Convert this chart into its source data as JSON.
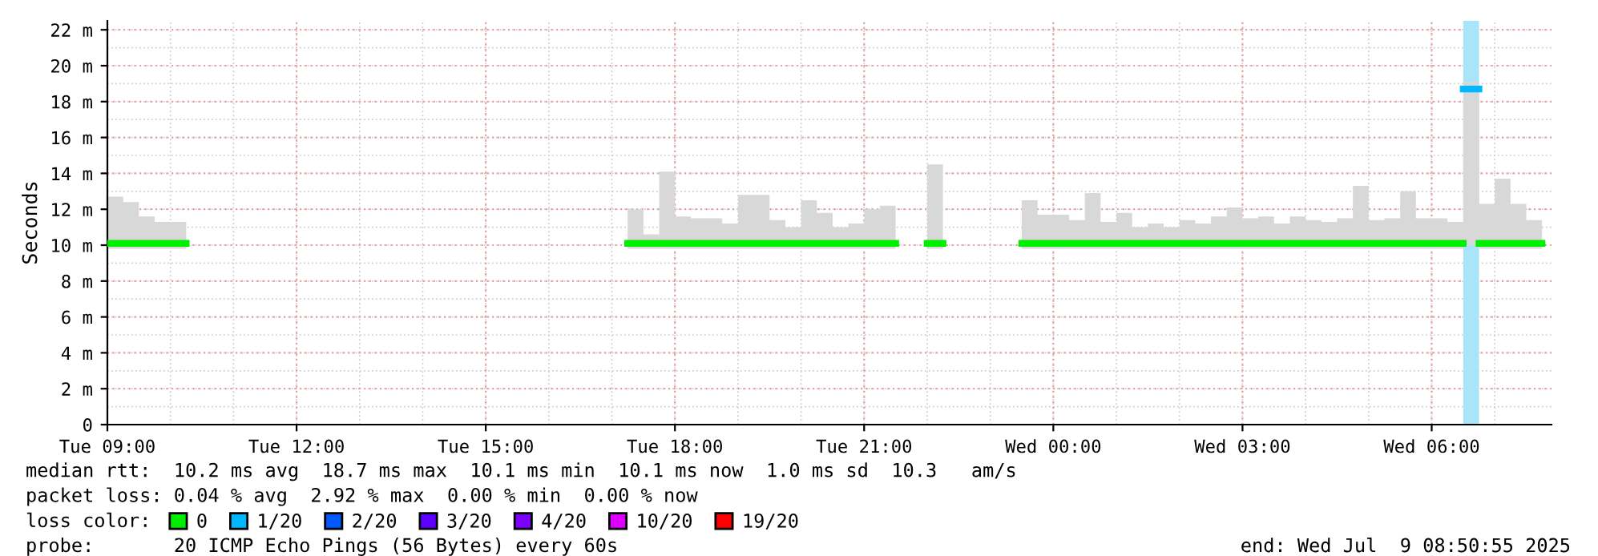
{
  "chart_data": {
    "type": "step",
    "ylabel": "Seconds",
    "x": [
      "2025-07-08T09:00",
      "2025-07-08T09:15",
      "2025-07-08T09:30",
      "2025-07-08T09:45",
      "2025-07-08T10:00",
      "2025-07-08T10:15",
      "2025-07-08T10:30",
      "2025-07-08T10:45",
      "2025-07-08T11:00",
      "2025-07-08T11:15",
      "2025-07-08T11:30",
      "2025-07-08T11:45",
      "2025-07-08T12:00",
      "2025-07-08T12:15",
      "2025-07-08T12:30",
      "2025-07-08T12:45",
      "2025-07-08T13:00",
      "2025-07-08T13:15",
      "2025-07-08T13:30",
      "2025-07-08T13:45",
      "2025-07-08T14:00",
      "2025-07-08T14:15",
      "2025-07-08T14:30",
      "2025-07-08T14:45",
      "2025-07-08T15:00",
      "2025-07-08T15:15",
      "2025-07-08T15:30",
      "2025-07-08T15:45",
      "2025-07-08T16:00",
      "2025-07-08T16:15",
      "2025-07-08T16:30",
      "2025-07-08T16:45",
      "2025-07-08T17:00",
      "2025-07-08T17:15",
      "2025-07-08T17:30",
      "2025-07-08T17:45",
      "2025-07-08T18:00",
      "2025-07-08T18:15",
      "2025-07-08T18:30",
      "2025-07-08T18:45",
      "2025-07-08T19:00",
      "2025-07-08T19:15",
      "2025-07-08T19:30",
      "2025-07-08T19:45",
      "2025-07-08T20:00",
      "2025-07-08T20:15",
      "2025-07-08T20:30",
      "2025-07-08T20:45",
      "2025-07-08T21:00",
      "2025-07-08T21:15",
      "2025-07-08T21:30",
      "2025-07-08T21:45",
      "2025-07-08T22:00",
      "2025-07-08T22:15",
      "2025-07-08T22:30",
      "2025-07-08T22:45",
      "2025-07-08T23:00",
      "2025-07-08T23:15",
      "2025-07-08T23:30",
      "2025-07-08T23:45",
      "2025-07-09T00:00",
      "2025-07-09T00:15",
      "2025-07-09T00:30",
      "2025-07-09T00:45",
      "2025-07-09T01:00",
      "2025-07-09T01:15",
      "2025-07-09T01:30",
      "2025-07-09T01:45",
      "2025-07-09T02:00",
      "2025-07-09T02:15",
      "2025-07-09T02:30",
      "2025-07-09T02:45",
      "2025-07-09T03:00",
      "2025-07-09T03:15",
      "2025-07-09T03:30",
      "2025-07-09T03:45",
      "2025-07-09T04:00",
      "2025-07-09T04:15",
      "2025-07-09T04:30",
      "2025-07-09T04:45",
      "2025-07-09T05:00",
      "2025-07-09T05:15",
      "2025-07-09T05:30",
      "2025-07-09T05:45",
      "2025-07-09T06:00",
      "2025-07-09T06:15",
      "2025-07-09T06:30",
      "2025-07-09T06:45",
      "2025-07-09T07:00",
      "2025-07-09T07:15",
      "2025-07-09T07:30",
      "2025-07-09T07:45"
    ],
    "series": [
      {
        "name": "0",
        "color": "#00ee00",
        "values": [
          10.1,
          10.1,
          10.1,
          10.1,
          10.1,
          null,
          null,
          null,
          null,
          null,
          null,
          null,
          null,
          null,
          null,
          null,
          null,
          null,
          null,
          null,
          null,
          null,
          null,
          null,
          null,
          null,
          null,
          null,
          null,
          null,
          null,
          null,
          null,
          10.1,
          10.1,
          10.1,
          10.1,
          10.1,
          10.1,
          10.1,
          10.1,
          10.1,
          10.1,
          10.1,
          10.1,
          10.1,
          10.1,
          10.1,
          10.1,
          10.1,
          null,
          null,
          10.1,
          null,
          null,
          null,
          null,
          null,
          10.1,
          10.1,
          10.1,
          10.1,
          10.1,
          10.1,
          10.1,
          10.1,
          10.1,
          10.1,
          10.1,
          10.1,
          10.1,
          10.1,
          10.1,
          10.1,
          10.1,
          10.1,
          10.1,
          10.1,
          10.1,
          10.1,
          10.1,
          10.1,
          10.1,
          10.1,
          10.1,
          10.1,
          null,
          10.1,
          10.1,
          10.1,
          10.1,
          10.1
        ],
        "lower": [
          9.8,
          9.8,
          9.8,
          9.8,
          9.8,
          null,
          null,
          null,
          null,
          null,
          null,
          null,
          null,
          null,
          null,
          null,
          null,
          null,
          null,
          null,
          null,
          null,
          null,
          null,
          null,
          null,
          null,
          null,
          null,
          null,
          null,
          null,
          null,
          9.8,
          9.8,
          9.8,
          9.8,
          9.8,
          9.8,
          9.8,
          9.8,
          9.8,
          9.8,
          9.8,
          9.8,
          9.8,
          9.8,
          9.8,
          9.8,
          9.8,
          null,
          null,
          9.8,
          null,
          null,
          null,
          null,
          null,
          9.8,
          9.8,
          9.8,
          9.8,
          9.8,
          9.8,
          9.8,
          9.8,
          9.8,
          9.8,
          9.8,
          9.8,
          9.8,
          9.8,
          9.8,
          9.8,
          9.8,
          9.8,
          9.8,
          9.8,
          9.8,
          9.8,
          9.8,
          9.8,
          9.8,
          9.8,
          9.8,
          9.8,
          10.0,
          9.8,
          9.8,
          9.8,
          9.8,
          9.8
        ],
        "upper": [
          12.7,
          12.4,
          11.6,
          11.3,
          11.3,
          null,
          null,
          null,
          null,
          null,
          null,
          null,
          null,
          null,
          null,
          null,
          null,
          null,
          null,
          null,
          null,
          null,
          null,
          null,
          null,
          null,
          null,
          null,
          null,
          null,
          null,
          null,
          null,
          12.0,
          10.6,
          14.1,
          11.6,
          11.5,
          11.5,
          11.2,
          12.8,
          12.8,
          11.4,
          11.0,
          12.5,
          11.8,
          11.0,
          11.2,
          12.0,
          12.2,
          null,
          null,
          14.5,
          null,
          null,
          null,
          null,
          null,
          12.5,
          11.7,
          11.7,
          11.4,
          12.9,
          11.3,
          11.8,
          11.0,
          11.2,
          11.0,
          11.4,
          11.2,
          11.6,
          12.1,
          11.5,
          11.6,
          11.2,
          11.6,
          11.4,
          11.3,
          11.5,
          13.3,
          11.4,
          11.5,
          13.0,
          11.5,
          11.5,
          11.3,
          19.1,
          12.3,
          13.7,
          12.3,
          11.4,
          11.4
        ]
      },
      {
        "name": "1/20",
        "color": "#00b8ff",
        "x": [
          "2025-07-09T06:30",
          "2025-07-09T06:45"
        ],
        "values": [
          18.7,
          18.7
        ]
      },
      {
        "name": "2/20",
        "color": "#0059ff",
        "values": [
          null,
          null,
          null,
          null,
          null,
          null,
          null,
          null,
          null,
          null,
          null,
          null,
          null,
          null,
          null,
          null,
          null,
          null,
          null,
          null,
          null,
          null,
          null,
          null,
          null,
          null,
          null,
          null,
          null,
          null,
          null,
          null,
          null,
          null,
          null,
          null,
          null,
          null,
          null,
          null,
          null,
          null,
          null,
          null,
          null,
          null,
          null,
          null,
          null,
          null,
          null,
          null,
          null,
          null,
          null,
          null,
          null,
          null,
          null,
          null,
          null,
          null,
          null,
          null,
          null,
          null,
          null,
          null,
          null,
          null,
          null,
          null,
          null,
          null,
          null,
          null,
          null,
          null,
          null,
          null,
          null,
          null,
          null,
          null,
          null,
          null,
          null,
          null,
          null,
          null,
          null,
          null
        ]
      },
      {
        "name": "3/20",
        "color": "#5e00ff",
        "values": [
          null,
          null,
          null,
          null,
          null,
          null,
          null,
          null,
          null,
          null,
          null,
          null,
          null,
          null,
          null,
          null,
          null,
          null,
          null,
          null,
          null,
          null,
          null,
          null,
          null,
          null,
          null,
          null,
          null,
          null,
          null,
          null,
          null,
          null,
          null,
          null,
          null,
          null,
          null,
          null,
          null,
          null,
          null,
          null,
          null,
          null,
          null,
          null,
          null,
          null,
          null,
          null,
          null,
          null,
          null,
          null,
          null,
          null,
          null,
          null,
          null,
          null,
          null,
          null,
          null,
          null,
          null,
          null,
          null,
          null,
          null,
          null,
          null,
          null,
          null,
          null,
          null,
          null,
          null,
          null,
          null,
          null,
          null,
          null,
          null,
          null,
          null,
          null,
          null,
          null,
          null,
          null
        ]
      },
      {
        "name": "4/20",
        "color": "#7e00ff",
        "values": [
          null,
          null,
          null,
          null,
          null,
          null,
          null,
          null,
          null,
          null,
          null,
          null,
          null,
          null,
          null,
          null,
          null,
          null,
          null,
          null,
          null,
          null,
          null,
          null,
          null,
          null,
          null,
          null,
          null,
          null,
          null,
          null,
          null,
          null,
          null,
          null,
          null,
          null,
          null,
          null,
          null,
          null,
          null,
          null,
          null,
          null,
          null,
          null,
          null,
          null,
          null,
          null,
          null,
          null,
          null,
          null,
          null,
          null,
          null,
          null,
          null,
          null,
          null,
          null,
          null,
          null,
          null,
          null,
          null,
          null,
          null,
          null,
          null,
          null,
          null,
          null,
          null,
          null,
          null,
          null,
          null,
          null,
          null,
          null,
          null,
          null,
          null,
          null,
          null,
          null,
          null,
          null
        ]
      },
      {
        "name": "10/20",
        "color": "#dd00ff",
        "values": [
          null,
          null,
          null,
          null,
          null,
          null,
          null,
          null,
          null,
          null,
          null,
          null,
          null,
          null,
          null,
          null,
          null,
          null,
          null,
          null,
          null,
          null,
          null,
          null,
          null,
          null,
          null,
          null,
          null,
          null,
          null,
          null,
          null,
          null,
          null,
          null,
          null,
          null,
          null,
          null,
          null,
          null,
          null,
          null,
          null,
          null,
          null,
          null,
          null,
          null,
          null,
          null,
          null,
          null,
          null,
          null,
          null,
          null,
          null,
          null,
          null,
          null,
          null,
          null,
          null,
          null,
          null,
          null,
          null,
          null,
          null,
          null,
          null,
          null,
          null,
          null,
          null,
          null,
          null,
          null,
          null,
          null,
          null,
          null,
          null,
          null,
          null,
          null,
          null,
          null,
          null,
          null
        ]
      },
      {
        "name": "19/20",
        "color": "#ff0000",
        "values": [
          null,
          null,
          null,
          null,
          null,
          null,
          null,
          null,
          null,
          null,
          null,
          null,
          null,
          null,
          null,
          null,
          null,
          null,
          null,
          null,
          null,
          null,
          null,
          null,
          null,
          null,
          null,
          null,
          null,
          null,
          null,
          null,
          null,
          null,
          null,
          null,
          null,
          null,
          null,
          null,
          null,
          null,
          null,
          null,
          null,
          null,
          null,
          null,
          null,
          null,
          null,
          null,
          null,
          null,
          null,
          null,
          null,
          null,
          null,
          null,
          null,
          null,
          null,
          null,
          null,
          null,
          null,
          null,
          null,
          null,
          null,
          null,
          null,
          null,
          null,
          null,
          null,
          null,
          null,
          null,
          null,
          null,
          null,
          null,
          null,
          null,
          null,
          null,
          null,
          null,
          null,
          null
        ]
      }
    ],
    "bands": [
      {
        "axis": "x",
        "from": "2025-07-09T06:30",
        "to": "2025-07-09T06:45",
        "color": "#a8e4fa"
      }
    ],
    "xlim": [
      "2025-07-08T09:00",
      "2025-07-09T07:54"
    ],
    "xticks": [
      {
        "value": "2025-07-08T09:00",
        "label": "Tue 09:00"
      },
      {
        "value": "2025-07-08T12:00",
        "label": "Tue 12:00"
      },
      {
        "value": "2025-07-08T15:00",
        "label": "Tue 15:00"
      },
      {
        "value": "2025-07-08T18:00",
        "label": "Tue 18:00"
      },
      {
        "value": "2025-07-08T21:00",
        "label": "Tue 21:00"
      },
      {
        "value": "2025-07-09T00:00",
        "label": "Wed 00:00"
      },
      {
        "value": "2025-07-09T03:00",
        "label": "Wed 03:00"
      },
      {
        "value": "2025-07-09T06:00",
        "label": "Wed 06:00"
      }
    ],
    "ylim": [
      0,
      22.5
    ],
    "yticks": [
      0,
      {
        "value": 2,
        "label": "2 m"
      },
      {
        "value": 4,
        "label": "4 m"
      },
      {
        "value": 6,
        "label": "6 m"
      },
      {
        "value": 8,
        "label": "8 m"
      },
      {
        "value": 10,
        "label": "10 m"
      },
      {
        "value": 12,
        "label": "12 m"
      },
      {
        "value": 14,
        "label": "14 m"
      },
      {
        "value": 16,
        "label": "16 m"
      },
      {
        "value": 18,
        "label": "18 m"
      },
      {
        "value": 20,
        "label": "20 m"
      },
      {
        "value": 22,
        "label": "22 m"
      }
    ],
    "grid": true,
    "legend": "bottom",
    "legend_title": "loss color:",
    "annotations": [
      "median rtt:  10.2 ms avg  18.7 ms max  10.1 ms min  10.1 ms now  1.0 ms sd  10.3   am/s",
      "packet loss: 0.04 % avg  2.92 % max  0.00 % min  0.00 % now",
      "probe:       20 ICMP Echo Pings (56 Bytes) every 60s",
      "end: Wed Jul  9 08:50:55 2025"
    ]
  }
}
